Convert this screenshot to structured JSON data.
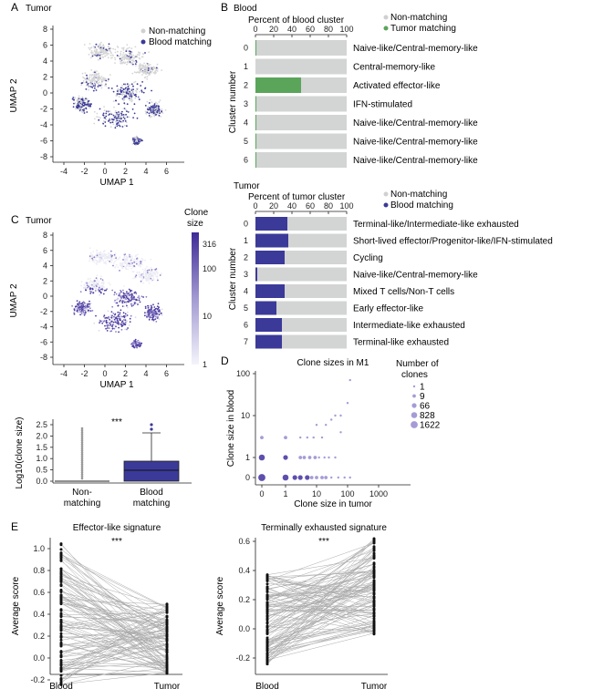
{
  "panels": {
    "A": {
      "letter": "A",
      "title": "Tumor",
      "legend": [
        "Non-matching",
        "Blood matching"
      ],
      "xlabel": "UMAP 1",
      "ylabel": "UMAP 2",
      "xticks": [
        "-4",
        "-2",
        "0",
        "2",
        "4",
        "6"
      ],
      "yticks": [
        "8",
        "6",
        "4",
        "2",
        "0",
        "-2",
        "-4",
        "-6",
        "-8"
      ]
    },
    "B": {
      "letter": "B",
      "title": "Blood",
      "axis_title": "Percent of blood cluster",
      "legend": [
        "Non-matching",
        "Tumor matching"
      ],
      "ylabel": "Cluster number",
      "xticks": [
        "0",
        "20",
        "40",
        "60",
        "80",
        "100"
      ]
    },
    "B2": {
      "title": "Tumor",
      "axis_title": "Percent of tumor cluster",
      "legend": [
        "Non-matching",
        "Blood matching"
      ],
      "ylabel": "Cluster number",
      "xticks": [
        "0",
        "20",
        "40",
        "60",
        "80",
        "100"
      ]
    },
    "C": {
      "letter": "C",
      "title": "Tumor",
      "legend_title_1": "Clone",
      "legend_title_2": "size",
      "colorbar_ticks": [
        "316",
        "100",
        "10",
        "1"
      ],
      "xlabel": "UMAP 1",
      "ylabel": "UMAP 2",
      "xticks": [
        "-4",
        "-2",
        "0",
        "2",
        "4",
        "6"
      ],
      "yticks": [
        "8",
        "6",
        "4",
        "2",
        "0",
        "-2",
        "-4",
        "-6",
        "-8"
      ]
    },
    "C2": {
      "ylabel": "Log10(clone size)",
      "significance": "***",
      "yticks": [
        "2.5",
        "2.0",
        "1.5",
        "1.0",
        "0.5",
        "0.0"
      ],
      "groups": [
        "Non-",
        "matching",
        "Blood",
        "matching"
      ]
    },
    "D": {
      "letter": "D",
      "title": "Clone sizes in M1",
      "xlabel": "Clone size in tumor",
      "ylabel": "Clone size in blood",
      "xticks": [
        "0",
        "1",
        "10",
        "100",
        "1000"
      ],
      "yticks": [
        "100",
        "10",
        "1",
        "0"
      ],
      "legend_title_1": "Number of",
      "legend_title_2": "clones",
      "legend": [
        "1",
        "9",
        "66",
        "828",
        "1622"
      ]
    },
    "E": {
      "letter": "E",
      "left_title": "Effector-like signature",
      "right_title": "Terminally exhausted signature",
      "ylabel": "Average score",
      "significance": "***",
      "groups": [
        "Blood",
        "Tumor"
      ],
      "left_yticks": [
        "1.0",
        "0.8",
        "0.6",
        "0.4",
        "0.2",
        "0.0",
        "-0.2"
      ],
      "right_yticks": [
        "0.6",
        "0.4",
        "0.2",
        "0.0",
        "-0.2"
      ]
    }
  },
  "chart_data": [
    {
      "type": "bar",
      "title": "Blood",
      "xlabel": "Percent of blood cluster",
      "ylabel": "Cluster number",
      "orientation": "horizontal",
      "xlim": [
        0,
        100
      ],
      "categories": [
        "0",
        "1",
        "2",
        "3",
        "4",
        "5",
        "6"
      ],
      "cluster_names": [
        "Naive-like/Central-memory-like",
        "Central-memory-like",
        "Activated effector-like",
        "IFN-stimulated",
        "Naive-like/Central-memory-like",
        "Naive-like/Central-memory-like",
        "Naive-like/Central-memory-like"
      ],
      "series": [
        {
          "name": "Tumor matching",
          "color": "#5aa55a",
          "values": [
            1,
            0,
            50,
            1,
            1,
            1,
            1
          ]
        },
        {
          "name": "Non-matching",
          "color": "#d3d4d4",
          "values": [
            99,
            100,
            50,
            99,
            99,
            99,
            99
          ]
        }
      ],
      "legend": "top-right"
    },
    {
      "type": "bar",
      "title": "Tumor",
      "xlabel": "Percent of tumor cluster",
      "ylabel": "Cluster number",
      "orientation": "horizontal",
      "xlim": [
        0,
        100
      ],
      "categories": [
        "0",
        "1",
        "2",
        "3",
        "4",
        "5",
        "6",
        "7"
      ],
      "cluster_names": [
        "Terminal-like/Intermediate-like exhausted",
        "Short-lived effector/Progenitor-like/IFN-stimulated",
        "Cycling",
        "Naive-like/Central-memory-like",
        "Mixed T cells/Non-T cells",
        "Early effector-like",
        "Intermediate-like exhausted",
        "Terminal-like exhausted"
      ],
      "series": [
        {
          "name": "Blood matching",
          "color": "#3b3a99",
          "values": [
            35,
            36,
            32,
            2,
            32,
            23,
            29,
            29
          ]
        },
        {
          "name": "Non-matching",
          "color": "#d3d4d4",
          "values": [
            65,
            64,
            68,
            98,
            68,
            77,
            71,
            71
          ]
        }
      ],
      "legend": "top-right"
    },
    {
      "type": "scatter",
      "title": "Clone sizes in M1",
      "xlabel": "Clone size in tumor",
      "ylabel": "Clone size in blood",
      "xscale": "log",
      "yscale": "log",
      "points": [
        [
          0,
          0,
          1622
        ],
        [
          1,
          0,
          828
        ],
        [
          2,
          0,
          66
        ],
        [
          3,
          0,
          66
        ],
        [
          5,
          0,
          66
        ],
        [
          7,
          0,
          9
        ],
        [
          10,
          0,
          9
        ],
        [
          15,
          0,
          9
        ],
        [
          20,
          0,
          9
        ],
        [
          30,
          0,
          1
        ],
        [
          50,
          0,
          1
        ],
        [
          80,
          0,
          1
        ],
        [
          120,
          0,
          1
        ],
        [
          0,
          1,
          828
        ],
        [
          1,
          1,
          66
        ],
        [
          3,
          1,
          9
        ],
        [
          4,
          1,
          9
        ],
        [
          6,
          1,
          9
        ],
        [
          9,
          1,
          9
        ],
        [
          12,
          1,
          1
        ],
        [
          18,
          1,
          1
        ],
        [
          25,
          1,
          1
        ],
        [
          40,
          1,
          1
        ],
        [
          0,
          3,
          9
        ],
        [
          1,
          3,
          9
        ],
        [
          3,
          3,
          1
        ],
        [
          5,
          3,
          1
        ],
        [
          8,
          3,
          1
        ],
        [
          15,
          3,
          1
        ],
        [
          20,
          6,
          1
        ],
        [
          30,
          8,
          1
        ],
        [
          40,
          10,
          1
        ],
        [
          60,
          10,
          1
        ],
        [
          100,
          20,
          1
        ],
        [
          60,
          4,
          1
        ],
        [
          10,
          6,
          1
        ],
        [
          120,
          70,
          1
        ]
      ],
      "legend_entries": [
        "1",
        "9",
        "66",
        "828",
        "1622"
      ],
      "legend": "right"
    }
  ]
}
